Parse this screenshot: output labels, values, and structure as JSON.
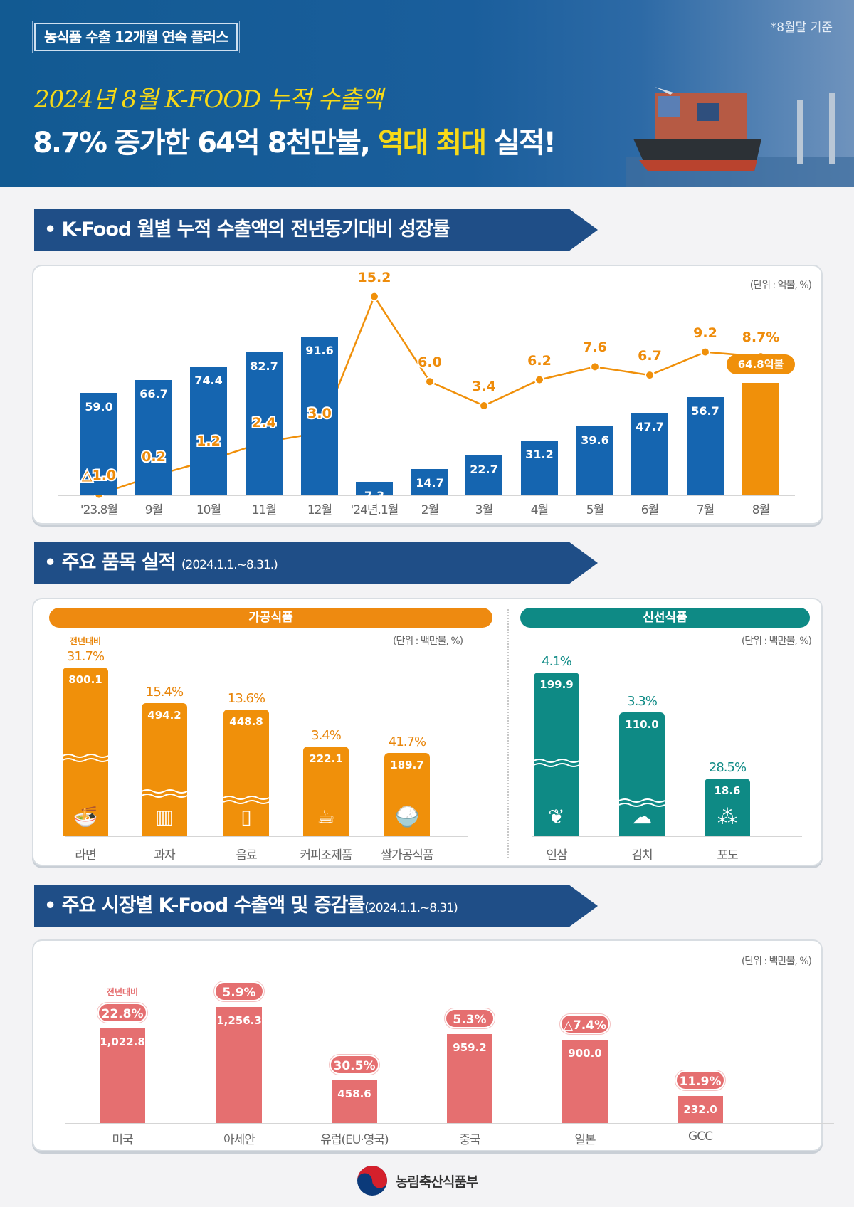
{
  "header": {
    "tag": "농식품 수출 12개월 연속 플러스",
    "basis_note": "*8월말 기준",
    "subtitle": "2024년 8월 K-FOOD 누적 수출액",
    "title_part1": "8.7% 증가한 64억 8천만불,",
    "title_highlight": "역대 최대",
    "title_part2": "실적!"
  },
  "sections": {
    "monthly": {
      "bullet": "•",
      "title": "K-Food 월별 누적 수출액의 전년동기대비 성장률"
    },
    "items": {
      "bullet": "•",
      "title": "주요 품목 실적",
      "period": "(2024.1.1.~8.31.)"
    },
    "markets": {
      "bullet": "•",
      "title": "주요 시장별 K-Food 수출액 및 증감률",
      "period": "(2024.1.1.~8.31)"
    }
  },
  "colors": {
    "bar_blue": "#1565b0",
    "accent_orange": "#f0900a",
    "teal": "#0e8a85",
    "coral": "#e56f70",
    "banner_navy": "#1f4e87"
  },
  "chart_data": [
    {
      "type": "bar+line",
      "unit": "(단위 : 억불, %)",
      "categories": [
        "'23.8월",
        "9월",
        "10월",
        "11월",
        "12월",
        "'24년.1월",
        "2월",
        "3월",
        "4월",
        "5월",
        "6월",
        "7월",
        "8월"
      ],
      "series": [
        {
          "type": "bar",
          "values": [
            59.0,
            66.7,
            74.4,
            82.7,
            91.6,
            7.3,
            14.7,
            22.7,
            31.2,
            39.6,
            47.7,
            56.7,
            64.8
          ],
          "labels": [
            "59.0",
            "66.7",
            "74.4",
            "82.7",
            "91.6",
            "7.3",
            "14.7",
            "22.7",
            "31.2",
            "39.6",
            "47.7",
            "56.7",
            ""
          ]
        },
        {
          "type": "line",
          "values": [
            -1.0,
            0.2,
            1.2,
            2.4,
            3.0,
            15.2,
            6.0,
            3.4,
            6.2,
            7.6,
            6.7,
            9.2,
            8.7
          ],
          "labels": [
            "△1.0",
            "0.2",
            "1.2",
            "2.4",
            "3.0",
            "15.2",
            "6.0",
            "3.4",
            "6.2",
            "7.6",
            "6.7",
            "9.2",
            "8.7%"
          ]
        }
      ],
      "callout": "64.8억불",
      "highlight_category": "8월"
    },
    {
      "type": "bar",
      "group": "가공식품",
      "unit": "(단위 : 백만불, %)",
      "yoy_label": "전년대비",
      "categories": [
        "라면",
        "과자",
        "음료",
        "커피조제품",
        "쌀가공식품"
      ],
      "values": [
        800.1,
        494.2,
        448.8,
        222.1,
        189.7
      ],
      "value_labels": [
        "800.1",
        "494.2",
        "448.8",
        "222.1",
        "189.7"
      ],
      "growth": [
        "31.7%",
        "15.4%",
        "13.6%",
        "3.4%",
        "41.7%"
      ],
      "broken_axis": [
        true,
        true,
        true,
        false,
        false
      ],
      "icons": [
        "noodle-bowl-icon",
        "snack-pack-icon",
        "can-drink-icon",
        "coffee-cup-icon",
        "rice-bowl-icon"
      ]
    },
    {
      "type": "bar",
      "group": "신선식품",
      "unit": "(단위 : 백만불, %)",
      "categories": [
        "인삼",
        "김치",
        "포도"
      ],
      "values": [
        199.9,
        110.0,
        18.6
      ],
      "value_labels": [
        "199.9",
        "110.0",
        "18.6"
      ],
      "growth": [
        "4.1%",
        "3.3%",
        "28.5%"
      ],
      "broken_axis": [
        true,
        true,
        false
      ],
      "icons": [
        "ginseng-icon",
        "cabbage-icon",
        "grape-icon"
      ]
    },
    {
      "type": "bar",
      "unit": "(단위 : 백만불, %)",
      "yoy_label": "전년대비",
      "categories": [
        "미국",
        "아세안",
        "유럽(EU·영국)",
        "중국",
        "일본",
        "GCC"
      ],
      "values": [
        1022.8,
        1256.3,
        458.6,
        959.2,
        900.0,
        232.0
      ],
      "value_labels": [
        "1,022.8",
        "1,256.3",
        "458.6",
        "959.2",
        "900.0",
        "232.0"
      ],
      "growth": [
        "22.8%",
        "5.9%",
        "30.5%",
        "5.3%",
        "△7.4%",
        "11.9%"
      ]
    }
  ],
  "footer": {
    "ministry": "농림축산식품부"
  }
}
